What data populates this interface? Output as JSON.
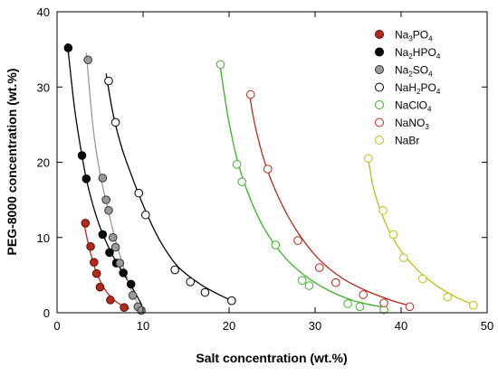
{
  "chart_data": {
    "type": "scatter",
    "title": "",
    "xlabel": "Salt concentration (wt.%)",
    "ylabel": "PEG-8000 concentration (wt.%)",
    "xlim": [
      0,
      50
    ],
    "ylim": [
      0,
      40
    ],
    "xticks": [
      "0",
      "10",
      "20",
      "30",
      "40",
      "50"
    ],
    "yticks": [
      "0",
      "10",
      "20",
      "30",
      "40"
    ],
    "grid": false,
    "legend_position": "top-right",
    "series": [
      {
        "name": "Na3PO4",
        "legend": [
          {
            "t": "Na"
          },
          {
            "t": "3",
            "sub": true
          },
          {
            "t": "PO"
          },
          {
            "t": "4",
            "sub": true
          }
        ],
        "marker_fill": "#b22a1e",
        "marker_stroke": "#5a0a05",
        "curve_color": "#b22a1e",
        "x": [
          3.3,
          3.9,
          4.3,
          4.6,
          5.0,
          6.2,
          7.8
        ],
        "y": [
          11.9,
          8.8,
          6.7,
          5.2,
          3.4,
          1.7,
          0.7
        ],
        "fit": [
          [
            3.1,
            12.2
          ],
          [
            3.5,
            9.8
          ],
          [
            4.0,
            7.5
          ],
          [
            4.6,
            5.3
          ],
          [
            5.5,
            3.2
          ],
          [
            6.5,
            1.8
          ],
          [
            7.5,
            1.0
          ],
          [
            8.4,
            0.5
          ]
        ]
      },
      {
        "name": "Na2HPO4",
        "legend": [
          {
            "t": "Na"
          },
          {
            "t": "2",
            "sub": true
          },
          {
            "t": "HPO"
          },
          {
            "t": "4",
            "sub": true
          }
        ],
        "marker_fill": "#0a0a0a",
        "marker_stroke": "#000000",
        "curve_color": "#000000",
        "x": [
          1.3,
          2.9,
          3.4,
          5.3,
          6.1,
          6.9,
          7.7,
          8.6
        ],
        "y": [
          35.2,
          20.9,
          17.8,
          10.4,
          8.0,
          6.6,
          5.3,
          3.8
        ],
        "fit": [
          [
            1.2,
            35.8
          ],
          [
            2.0,
            27.5
          ],
          [
            2.8,
            21.5
          ],
          [
            3.6,
            16.8
          ],
          [
            4.8,
            12.0
          ],
          [
            6.2,
            8.2
          ],
          [
            7.5,
            5.6
          ],
          [
            8.6,
            3.6
          ],
          [
            9.4,
            2.0
          ],
          [
            9.9,
            0.9
          ]
        ]
      },
      {
        "name": "Na2SO4",
        "legend": [
          {
            "t": "Na"
          },
          {
            "t": "2",
            "sub": true
          },
          {
            "t": "SO"
          },
          {
            "t": "4",
            "sub": true
          }
        ],
        "marker_fill": "#9a9a9a",
        "marker_stroke": "#333333",
        "curve_color": "#9a9a9a",
        "x": [
          3.6,
          5.3,
          5.7,
          6.0,
          6.5,
          6.8,
          7.3,
          8.8,
          9.4,
          9.8
        ],
        "y": [
          33.6,
          17.9,
          15.0,
          13.6,
          10.0,
          8.7,
          6.6,
          2.3,
          0.8,
          0.3
        ],
        "fit": [
          [
            3.4,
            34.5
          ],
          [
            4.2,
            24.5
          ],
          [
            5.0,
            18.5
          ],
          [
            5.9,
            13.8
          ],
          [
            6.9,
            9.2
          ],
          [
            7.9,
            5.5
          ],
          [
            8.7,
            2.9
          ],
          [
            9.4,
            1.2
          ],
          [
            9.9,
            0.3
          ]
        ]
      },
      {
        "name": "NaH2PO4",
        "legend": [
          {
            "t": "NaH"
          },
          {
            "t": "2",
            "sub": true
          },
          {
            "t": "PO"
          },
          {
            "t": "4",
            "sub": true
          }
        ],
        "marker_fill": "#ffffff",
        "marker_stroke": "#000000",
        "curve_color": "#000000",
        "x": [
          6.0,
          6.8,
          9.5,
          10.3,
          13.7,
          15.5,
          17.2,
          20.3
        ],
        "y": [
          30.8,
          25.3,
          15.9,
          13.0,
          5.7,
          4.1,
          2.7,
          1.6
        ],
        "fit": [
          [
            5.7,
            31.8
          ],
          [
            6.5,
            26.5
          ],
          [
            7.5,
            22.0
          ],
          [
            8.8,
            17.8
          ],
          [
            10.3,
            13.5
          ],
          [
            12.0,
            9.5
          ],
          [
            14.0,
            6.2
          ],
          [
            16.5,
            3.9
          ],
          [
            18.5,
            2.6
          ],
          [
            20.5,
            1.5
          ]
        ]
      },
      {
        "name": "NaClO4",
        "legend": [
          {
            "t": "NaClO"
          },
          {
            "t": "4",
            "sub": true
          }
        ],
        "marker_fill": "#ffffff",
        "marker_stroke": "#3bb02a",
        "curve_color": "#3bb02a",
        "x": [
          19.0,
          20.9,
          21.5,
          25.4,
          28.5,
          29.3,
          33.8,
          35.2,
          38.0
        ],
        "y": [
          33.0,
          19.7,
          17.4,
          9.0,
          4.3,
          3.6,
          1.2,
          0.8,
          0.4
        ],
        "fit": [
          [
            19.0,
            32.5
          ],
          [
            19.8,
            26.5
          ],
          [
            20.8,
            21.0
          ],
          [
            22.0,
            16.5
          ],
          [
            23.8,
            11.8
          ],
          [
            26.0,
            8.0
          ],
          [
            28.5,
            5.2
          ],
          [
            31.5,
            3.0
          ],
          [
            34.5,
            1.6
          ],
          [
            38.0,
            0.7
          ]
        ]
      },
      {
        "name": "NaNO3",
        "legend": [
          {
            "t": "NaNO"
          },
          {
            "t": "3",
            "sub": true
          }
        ],
        "marker_fill": "#ffffff",
        "marker_stroke": "#b22a1e",
        "curve_color": "#b22a1e",
        "x": [
          22.5,
          24.5,
          28.0,
          30.5,
          32.4,
          35.6,
          38.0,
          41.0
        ],
        "y": [
          29.0,
          19.1,
          9.6,
          6.0,
          4.0,
          2.4,
          1.3,
          0.8
        ],
        "fit": [
          [
            22.3,
            29.5
          ],
          [
            23.0,
            25.0
          ],
          [
            24.2,
            19.8
          ],
          [
            25.8,
            15.2
          ],
          [
            27.8,
            11.0
          ],
          [
            30.2,
            7.4
          ],
          [
            33.0,
            4.7
          ],
          [
            36.0,
            2.9
          ],
          [
            39.0,
            1.6
          ],
          [
            41.2,
            0.9
          ]
        ]
      },
      {
        "name": "NaBr",
        "legend": [
          {
            "t": "NaBr"
          }
        ],
        "marker_fill": "#ffffff",
        "marker_stroke": "#bdbd18",
        "curve_color": "#bdbd18",
        "x": [
          36.2,
          37.9,
          39.1,
          40.3,
          42.5,
          45.4,
          48.4
        ],
        "y": [
          20.5,
          13.6,
          10.4,
          7.3,
          4.5,
          2.1,
          1.0
        ],
        "fit": [
          [
            36.2,
            20.2
          ],
          [
            36.8,
            16.5
          ],
          [
            37.6,
            13.6
          ],
          [
            38.6,
            10.9
          ],
          [
            40.0,
            8.2
          ],
          [
            41.8,
            5.8
          ],
          [
            44.0,
            3.7
          ],
          [
            46.5,
            2.0
          ],
          [
            48.6,
            1.0
          ]
        ]
      }
    ]
  }
}
